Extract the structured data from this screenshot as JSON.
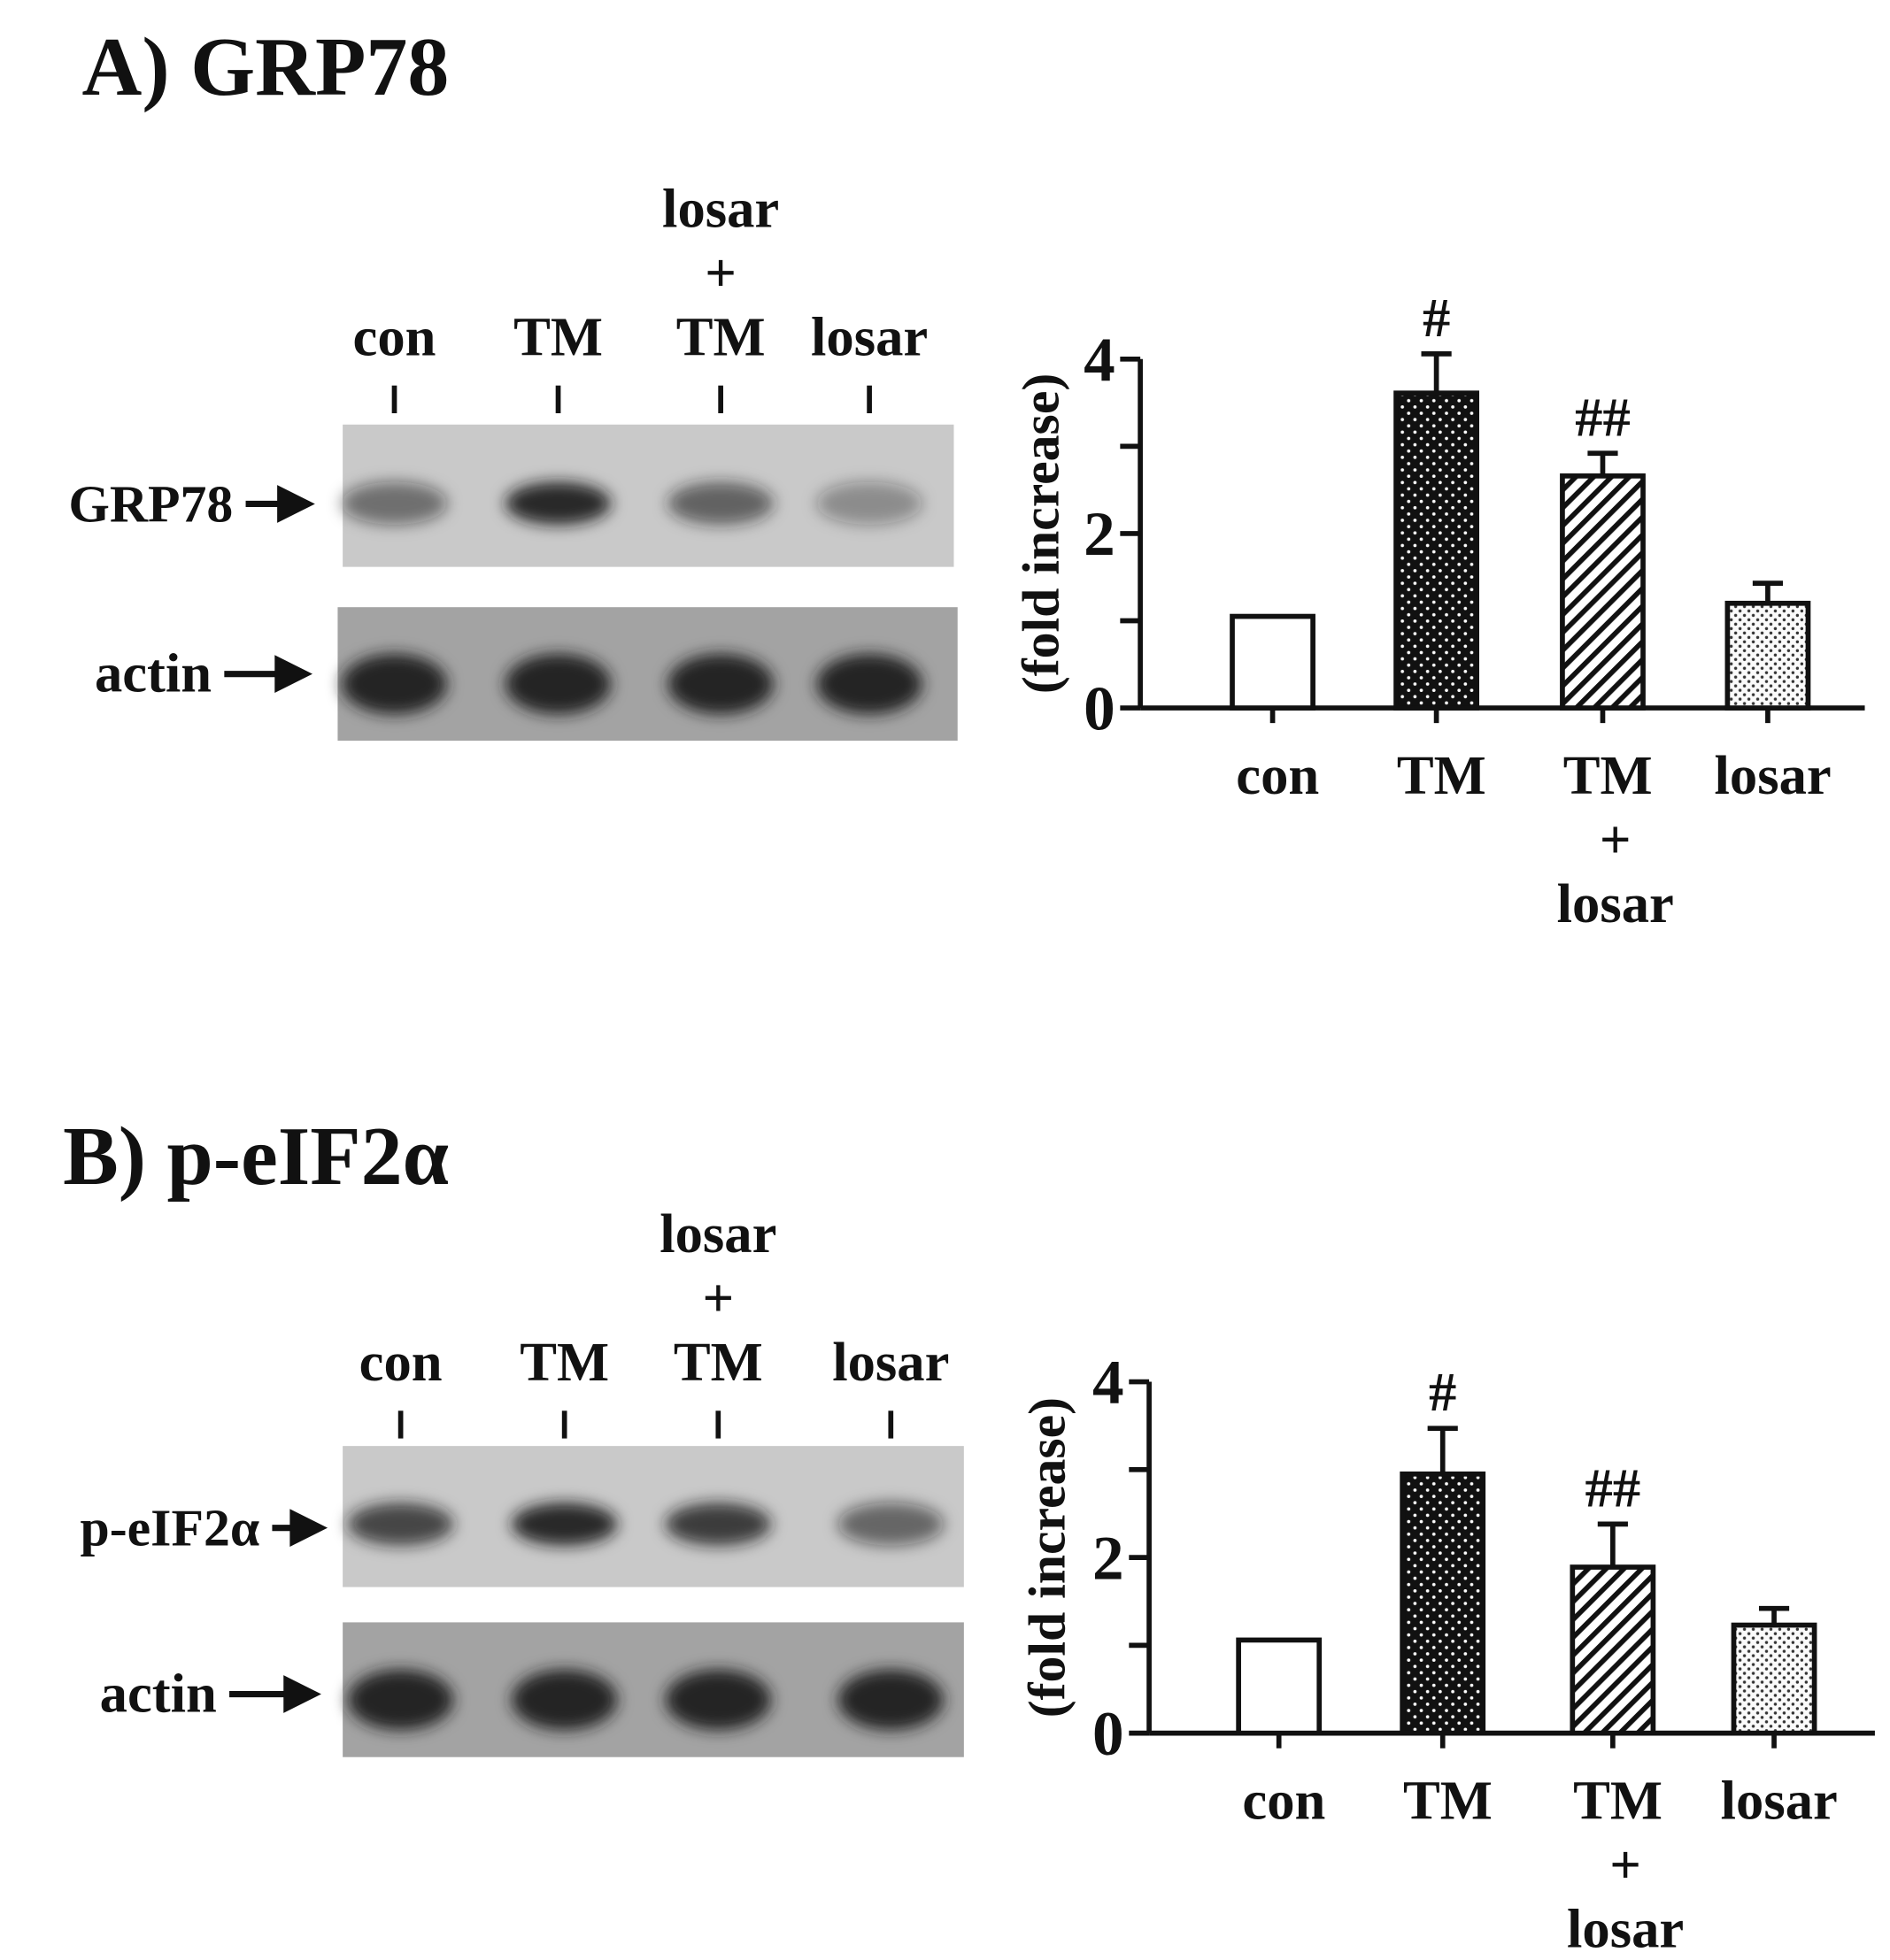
{
  "chart_data": [
    {
      "type": "bar",
      "title": "A) GRP78",
      "ylabel": "(fold increase)",
      "categories": [
        [
          "con"
        ],
        [
          "TM"
        ],
        [
          "TM",
          "+",
          "losar"
        ],
        [
          "losar"
        ]
      ],
      "values": [
        1.05,
        3.61,
        2.66,
        1.2
      ],
      "errors": [
        null,
        0.45,
        0.26,
        0.23
      ],
      "annotations": [
        null,
        "#",
        "##",
        null
      ],
      "fills": [
        "white",
        "dark-dots",
        "hatch",
        "light-dots"
      ],
      "ylim": [
        0,
        4
      ],
      "yticks": [
        0,
        2,
        4
      ],
      "minor_yticks": [
        1,
        3
      ],
      "blot": {
        "lanes": [
          [
            "con"
          ],
          [
            "TM"
          ],
          [
            "losar",
            "+",
            "TM"
          ],
          [
            "losar"
          ]
        ],
        "rows": [
          "GRP78",
          "actin"
        ]
      }
    },
    {
      "type": "bar",
      "title": "B) p-eIF2α",
      "ylabel": "(fold increase)",
      "categories": [
        [
          "con"
        ],
        [
          "TM"
        ],
        [
          "TM",
          "+",
          "losar"
        ],
        [
          "losar"
        ]
      ],
      "values": [
        1.06,
        2.95,
        1.89,
        1.23
      ],
      "errors": [
        null,
        0.52,
        0.49,
        0.19
      ],
      "annotations": [
        null,
        "#",
        "##",
        null
      ],
      "fills": [
        "white",
        "dark-dots",
        "hatch",
        "light-dots"
      ],
      "ylim": [
        0,
        4
      ],
      "yticks": [
        0,
        2,
        4
      ],
      "minor_yticks": [
        1,
        3
      ],
      "blot": {
        "lanes": [
          [
            "con"
          ],
          [
            "TM"
          ],
          [
            "losar",
            "+",
            "TM"
          ],
          [
            "losar"
          ]
        ],
        "rows": [
          "p-eIF2α",
          "actin"
        ]
      }
    }
  ]
}
